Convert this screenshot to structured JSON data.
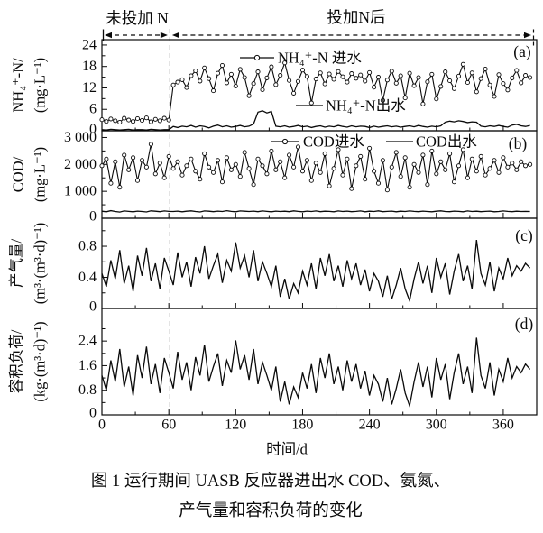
{
  "figure": {
    "annotations": {
      "phase_left": "未投加 N",
      "phase_right": "投加N后",
      "divider_day": 61
    },
    "xlabel": "时间/d",
    "xticks": [
      0,
      60,
      120,
      180,
      240,
      300,
      360
    ],
    "xtick_labels": [
      "0",
      "60",
      "120",
      "180",
      "240",
      "300",
      "360"
    ],
    "xtick_minor_step": 30,
    "caption_line1": "图 1  运行期间 UASB 反应器进出水 COD、氨氮、",
    "caption_line2": "产气量和容积负荷的变化",
    "line_color": "#0a0a0a",
    "background_color": "#ffffff"
  },
  "chart_data": [
    {
      "id": "a",
      "type": "line",
      "panel_label": "(a)",
      "ylabel_name": "NH₄⁺-N/",
      "ylabel_unit": "(mg·L⁻¹)",
      "ylim": [
        0,
        25.5
      ],
      "yticks": [
        0,
        6,
        12,
        18,
        24
      ],
      "ytick_labels": [
        "0",
        "6",
        "12",
        "18",
        "24"
      ],
      "xlim": [
        0,
        390
      ],
      "x_start": 0,
      "x_step": 4,
      "series": [
        {
          "name": "NH₄⁺-N 进水",
          "marker": "circle",
          "values": [
            3.1,
            2.6,
            3.3,
            2.8,
            2.4,
            3.5,
            3.0,
            2.6,
            3.4,
            2.9,
            3.6,
            2.5,
            3.2,
            2.8,
            3.5,
            3.0,
            12.8,
            13.6,
            14.3,
            12.1,
            15.4,
            16.8,
            13.9,
            17.6,
            14.6,
            11.2,
            16.1,
            18.3,
            13.4,
            15.8,
            12.5,
            17.2,
            14.9,
            9.8,
            13.2,
            16.5,
            11.5,
            14.8,
            17.9,
            12.9,
            15.5,
            19.0,
            14.1,
            10.5,
            13.8,
            17.0,
            15.2,
            7.8,
            14.5,
            16.2,
            13.1,
            15.9,
            14.4,
            16.6,
            15.1,
            13.6,
            16.0,
            14.7,
            15.6,
            13.9,
            16.3,
            12.2,
            15.0,
            8.5,
            14.2,
            16.7,
            13.3,
            15.4,
            9.2,
            16.1,
            12.6,
            14.9,
            7.5,
            13.7,
            15.8,
            8.9,
            12.4,
            16.5,
            14.0,
            11.8,
            15.3,
            18.6,
            13.5,
            16.2,
            10.9,
            14.6,
            17.3,
            12.8,
            9.6,
            15.7,
            13.2,
            11.4,
            14.8,
            16.9,
            13.4,
            15.5,
            14.9
          ]
        },
        {
          "name": "NH₄⁺-N出水",
          "marker": "none",
          "values": [
            0.3,
            0.2,
            0.4,
            0.3,
            0.2,
            0.3,
            0.4,
            0.2,
            0.3,
            0.3,
            0.2,
            0.4,
            0.3,
            0.2,
            0.3,
            0.3,
            1.2,
            0.9,
            1.3,
            1.1,
            1.5,
            1.0,
            1.4,
            1.2,
            0.8,
            1.3,
            1.6,
            1.1,
            1.4,
            1.0,
            1.2,
            1.5,
            1.1,
            1.3,
            1.9,
            5.2,
            5.6,
            5.0,
            5.4,
            1.3,
            1.1,
            1.4,
            1.0,
            1.2,
            1.5,
            1.1,
            1.3,
            0.9,
            1.2,
            1.4,
            1.0,
            1.3,
            1.1,
            1.5,
            1.2,
            1.0,
            1.4,
            1.1,
            1.3,
            1.2,
            0.9,
            1.3,
            1.0,
            1.2,
            1.4,
            1.1,
            1.3,
            1.0,
            1.2,
            1.4,
            1.1,
            1.5,
            1.2,
            1.0,
            1.3,
            1.1,
            1.4,
            2.4,
            2.7,
            2.5,
            2.8,
            2.6,
            2.3,
            2.5,
            2.4,
            1.3,
            1.1,
            1.4,
            1.2,
            1.5,
            1.2,
            1.0,
            1.6,
            1.8,
            1.4,
            1.2,
            1.5
          ]
        }
      ]
    },
    {
      "id": "b",
      "type": "line",
      "panel_label": "(b)",
      "ylabel_name": "COD/",
      "ylabel_unit": "(mg·L⁻¹)",
      "ylim": [
        0,
        3250
      ],
      "yticks": [
        0,
        1000,
        2000,
        3000
      ],
      "ytick_labels": [
        "0",
        "1 000",
        "2 000",
        "3 000"
      ],
      "xlim": [
        0,
        390
      ],
      "x_start": 0,
      "x_step": 4,
      "series": [
        {
          "name": "COD进水",
          "marker": "circle",
          "values": [
            1950,
            2200,
            1300,
            2100,
            1150,
            2350,
            1800,
            2250,
            1400,
            2150,
            1900,
            2750,
            1650,
            2050,
            1500,
            2300,
            1850,
            2100,
            1600,
            1950,
            2200,
            1750,
            1450,
            2400,
            1900,
            1700,
            2150,
            1350,
            2250,
            1800,
            2000,
            1550,
            2450,
            1850,
            1250,
            2200,
            1950,
            1650,
            2500,
            1800,
            2100,
            1500,
            2350,
            1900,
            2650,
            1750,
            2150,
            1400,
            2050,
            1700,
            2400,
            1200,
            1850,
            2550,
            1600,
            2200,
            1100,
            1950,
            2300,
            1450,
            2600,
            1750,
            1300,
            2150,
            1050,
            1900,
            2450,
            1550,
            2250,
            1150,
            2000,
            1700,
            2350,
            1250,
            2500,
            1650,
            2100,
            1800,
            2400,
            1350,
            1950,
            2550,
            1500,
            2200,
            1750,
            2300,
            1600,
            1850,
            2150,
            1700,
            2250,
            1900,
            2050,
            1800,
            2100,
            1950,
            2000
          ]
        },
        {
          "name": "COD出水",
          "marker": "none",
          "values": [
            260,
            240,
            280,
            250,
            230,
            270,
            255,
            240,
            265,
            250,
            235,
            275,
            260,
            245,
            270,
            255,
            250,
            265,
            240,
            260,
            275,
            250,
            235,
            270,
            260,
            245,
            265,
            250,
            280,
            255,
            240,
            270,
            260,
            250,
            265,
            245,
            270,
            255,
            240,
            265,
            250,
            260,
            245,
            275,
            255,
            240,
            265,
            250,
            270,
            245,
            260,
            255,
            240,
            270,
            250,
            265,
            245,
            255,
            270,
            240,
            260,
            250,
            275,
            245,
            255,
            265,
            240,
            260,
            250,
            270,
            255,
            245,
            265,
            250,
            240,
            260,
            275,
            250,
            245,
            265,
            255,
            240,
            270,
            250,
            260,
            245,
            255,
            265,
            240,
            250,
            270,
            255,
            245,
            260,
            250,
            255,
            250
          ]
        }
      ]
    },
    {
      "id": "c",
      "type": "line",
      "panel_label": "(c)",
      "ylabel_name": "产气量/",
      "ylabel_unit": "(m³·(m³·d)⁻¹)",
      "ylim": [
        0,
        1.16
      ],
      "yticks": [
        0,
        0.4,
        0.8
      ],
      "ytick_labels": [
        "0",
        "0.4",
        "0.8"
      ],
      "xlim": [
        0,
        390
      ],
      "x_start": 0,
      "x_step": 4,
      "series": [
        {
          "name": "产气量",
          "marker": "none",
          "values": [
            0.45,
            0.28,
            0.62,
            0.38,
            0.75,
            0.32,
            0.55,
            0.22,
            0.68,
            0.42,
            0.78,
            0.35,
            0.58,
            0.25,
            0.65,
            0.48,
            0.3,
            0.72,
            0.4,
            0.6,
            0.28,
            0.66,
            0.45,
            0.8,
            0.38,
            0.55,
            0.7,
            0.33,
            0.62,
            0.48,
            0.85,
            0.52,
            0.68,
            0.4,
            0.75,
            0.35,
            0.6,
            0.45,
            0.28,
            0.55,
            0.15,
            0.38,
            0.12,
            0.32,
            0.2,
            0.48,
            0.3,
            0.58,
            0.25,
            0.65,
            0.42,
            0.7,
            0.35,
            0.55,
            0.28,
            0.62,
            0.38,
            0.58,
            0.3,
            0.5,
            0.22,
            0.45,
            0.35,
            0.15,
            0.42,
            0.12,
            0.3,
            0.52,
            0.25,
            0.1,
            0.38,
            0.6,
            0.32,
            0.55,
            0.2,
            0.65,
            0.4,
            0.58,
            0.18,
            0.48,
            0.7,
            0.35,
            0.55,
            0.25,
            0.88,
            0.45,
            0.3,
            0.6,
            0.22,
            0.52,
            0.38,
            0.65,
            0.42,
            0.55,
            0.48,
            0.58,
            0.52
          ]
        }
      ]
    },
    {
      "id": "d",
      "type": "line",
      "panel_label": "(d)",
      "ylabel_name": "容积负荷/",
      "ylabel_unit": "(kg·(m³·d)⁻¹)",
      "ylim": [
        0,
        3.46
      ],
      "yticks": [
        0,
        0.8,
        1.6,
        2.4
      ],
      "ytick_labels": [
        "0",
        "0.8",
        "1.6",
        "2.4"
      ],
      "xlim": [
        0,
        390
      ],
      "x_start": 0,
      "x_step": 4,
      "series": [
        {
          "name": "容积负荷",
          "marker": "none",
          "values": [
            1.28,
            0.8,
            1.77,
            1.08,
            2.14,
            0.91,
            1.57,
            0.63,
            1.94,
            1.2,
            2.22,
            1.0,
            1.65,
            0.71,
            1.85,
            1.37,
            0.86,
            2.05,
            1.14,
            1.71,
            0.8,
            1.88,
            1.28,
            2.28,
            1.08,
            1.57,
            2.0,
            0.94,
            1.77,
            1.37,
            2.42,
            1.48,
            1.94,
            1.14,
            2.14,
            1.0,
            1.71,
            1.28,
            0.8,
            1.57,
            0.43,
            1.08,
            0.34,
            0.91,
            0.57,
            1.37,
            0.86,
            1.65,
            0.71,
            1.85,
            1.2,
            2.0,
            1.0,
            1.57,
            0.8,
            1.77,
            1.08,
            1.65,
            0.86,
            1.43,
            0.63,
            1.28,
            1.0,
            0.43,
            1.2,
            0.34,
            0.86,
            1.48,
            0.71,
            0.29,
            1.08,
            1.71,
            0.91,
            1.57,
            0.57,
            1.85,
            1.14,
            1.65,
            0.51,
            1.37,
            2.0,
            1.0,
            1.57,
            0.71,
            2.51,
            1.28,
            0.86,
            1.71,
            0.63,
            1.48,
            1.08,
            1.85,
            1.2,
            1.57,
            1.37,
            1.65,
            1.48
          ]
        }
      ]
    }
  ]
}
